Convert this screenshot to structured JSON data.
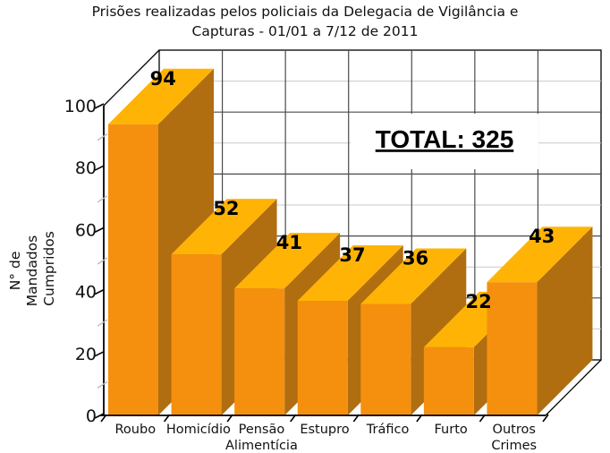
{
  "chart_data": {
    "type": "bar",
    "projection": "3d",
    "title_lines": [
      "Prisões realizadas pelos policiais da Delegacia de Vigilância e",
      "Capturas - 01/01 a 7/12 de 2011"
    ],
    "ylabel_lines": [
      "N° de",
      "Mandados",
      "Cumpridos"
    ],
    "xlabel": "",
    "categories": [
      "Roubo",
      "Homicídio",
      "Pensão\nAlimentícia",
      "Estupro",
      "Tráfico",
      "Furto",
      "Outros\nCrimes"
    ],
    "values": [
      94,
      52,
      41,
      37,
      36,
      22,
      43
    ],
    "annotation": "TOTAL: 325",
    "total": 325,
    "yticks": [
      0,
      20,
      40,
      60,
      80,
      100
    ],
    "ylim": [
      0,
      100
    ],
    "grid": {
      "major_step": 20,
      "minor_step": 10,
      "vertical_lines": true
    },
    "legend": "none",
    "colors": {
      "bar_front": "#F5900F",
      "bar_top": "#FFB405",
      "bar_side": "#B06E10",
      "grid_major": "#4a4a4a",
      "grid_minor": "#c9c9c9",
      "minor_tick": "#bcbcbc",
      "axis": "#000000",
      "wall_fill": "#ffffff",
      "text": "#111111",
      "background": "#ffffff"
    }
  }
}
